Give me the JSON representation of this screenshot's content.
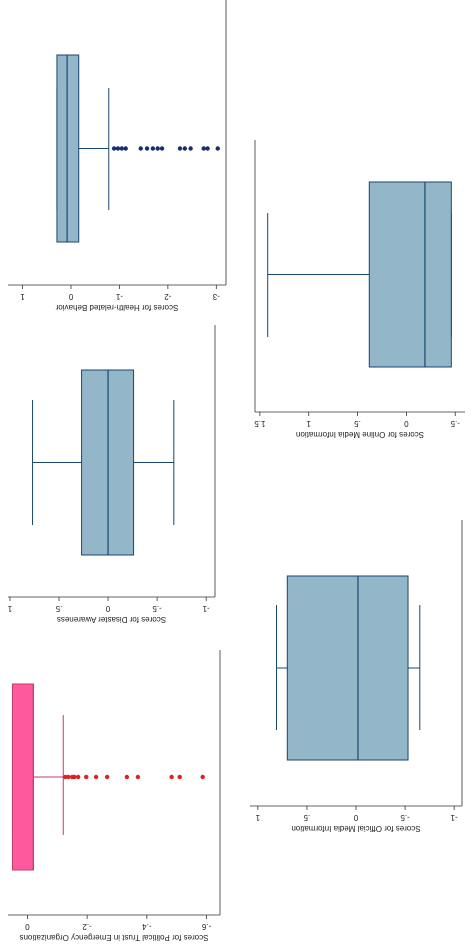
{
  "chart_data": [
    {
      "type": "box",
      "title": "Scores for Health-related Behavior",
      "xlim": [
        1.3,
        -3.2
      ],
      "xticks": [
        1,
        0,
        -1,
        -2,
        -3
      ],
      "q1": -0.16,
      "median": 0.08,
      "q3": 0.29,
      "whisker_low": -0.78,
      "whisker_high": 0.29,
      "outliers": [
        -0.89,
        -0.97,
        -1.05,
        -1.13,
        -1.44,
        -1.57,
        -1.69,
        -1.79,
        -1.88,
        -2.25,
        -2.35,
        -2.47,
        -2.74,
        -2.82,
        -3.03
      ],
      "fill": "#93b6c8",
      "color": "#1a476f",
      "outlier_color": "#1a2c6b"
    },
    {
      "type": "box",
      "title": "Scores for Online Media Information",
      "xlim": [
        1.55,
        -0.6
      ],
      "xticks": [
        1.5,
        1,
        {
          "value": 0.5,
          "label": ".5"
        },
        0,
        {
          "value": -0.5,
          "label": "-.5"
        }
      ],
      "q1": -0.46,
      "median": -0.19,
      "q3": 0.38,
      "whisker_low": -0.46,
      "whisker_high": 1.42,
      "outliers": [],
      "fill": "#93b6c8",
      "color": "#1a476f",
      "outlier_color": "#1a2c6b"
    },
    {
      "type": "box",
      "title": "Scores for Disaster Awareness",
      "xlim": [
        1.02,
        -1.09
      ],
      "xticks": [
        1,
        {
          "value": 0.5,
          "label": ".5"
        },
        0,
        {
          "value": -0.5,
          "label": "-.5"
        },
        -1
      ],
      "q1": -0.26,
      "median": 0,
      "q3": 0.27,
      "whisker_low": -0.67,
      "whisker_high": 0.77,
      "outliers": [],
      "fill": "#93b6c8",
      "color": "#1a476f",
      "outlier_color": "#1a2c6b"
    },
    {
      "type": "box",
      "title": "Scores for Official Media Information",
      "xlim": [
        1.08,
        -1.08
      ],
      "xticks": [
        1,
        {
          "value": 0.5,
          "label": ".5"
        },
        0,
        {
          "value": -0.5,
          "label": "-.5"
        },
        -1
      ],
      "q1": -0.53,
      "median": -0.02,
      "q3": 0.7,
      "whisker_low": -0.65,
      "whisker_high": 0.81,
      "outliers": [],
      "fill": "#93b6c8",
      "color": "#1a476f",
      "outlier_color": "#1a2c6b"
    },
    {
      "type": "box",
      "title": "Scores for Political Trust in Emergency Organizations",
      "xlim": [
        0.065,
        -0.645
      ],
      "xticks": [
        0,
        {
          "value": -0.2,
          "label": "-.2"
        },
        {
          "value": -0.4,
          "label": "-.4"
        },
        {
          "value": -0.6,
          "label": "-.6"
        }
      ],
      "q1": -0.02,
      "median": -0.02,
      "q3": 0.05,
      "whisker_low": -0.12,
      "whisker_high": 0.05,
      "outliers": [
        -0.127,
        -0.137,
        -0.15,
        -0.157,
        -0.17,
        -0.197,
        -0.23,
        -0.267,
        -0.333,
        -0.37,
        -0.483,
        -0.51,
        -0.587
      ],
      "fill": "#ff5a9e",
      "color": "#c03c6e",
      "outlier_color": "#e02020"
    }
  ]
}
